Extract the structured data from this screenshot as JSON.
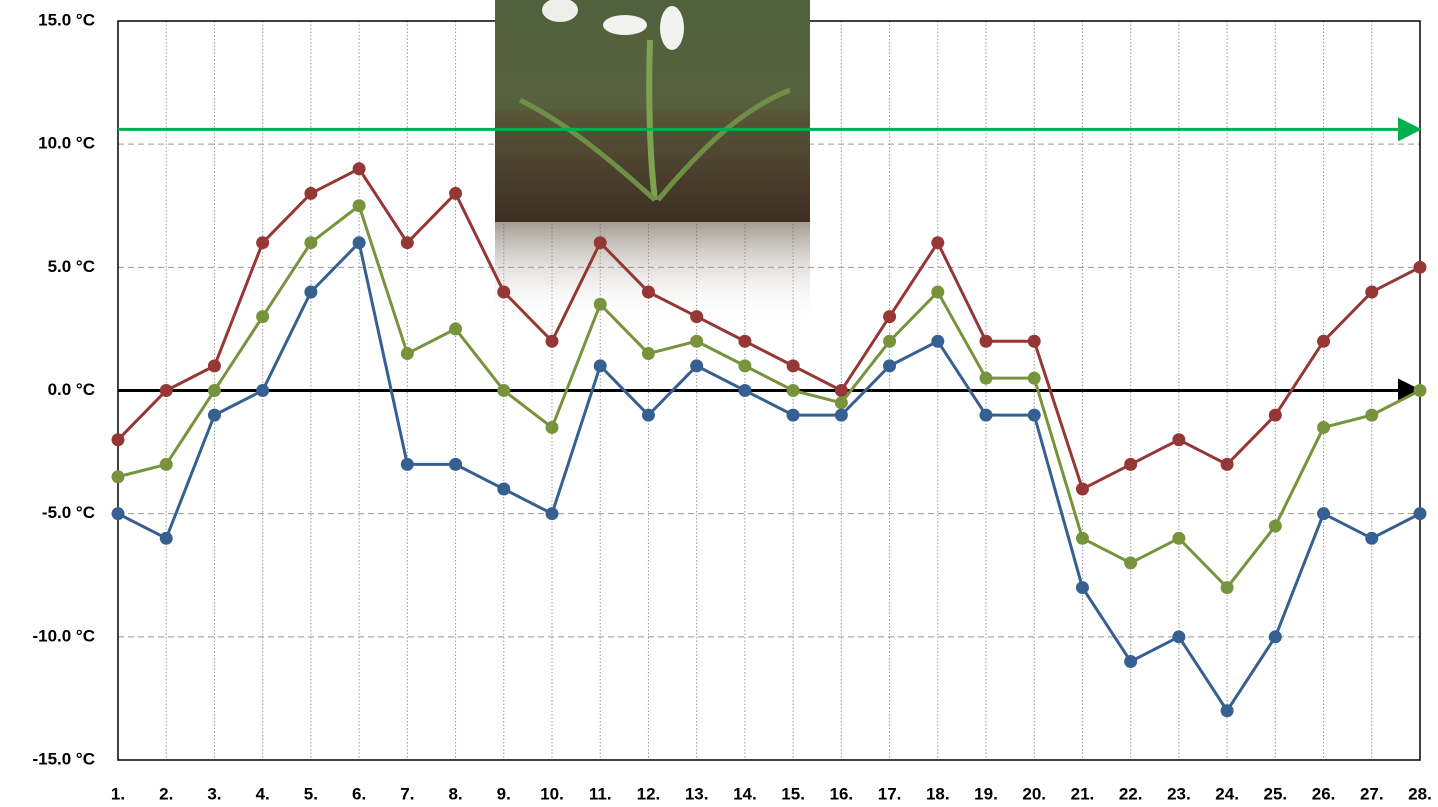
{
  "chart_data": {
    "type": "line",
    "categories": [
      "1.",
      "2.",
      "3.",
      "4.",
      "5.",
      "6.",
      "7.",
      "8.",
      "9.",
      "10.",
      "11.",
      "12.",
      "13.",
      "14.",
      "15.",
      "16.",
      "17.",
      "18.",
      "19.",
      "20.",
      "21.",
      "22.",
      "23.",
      "24.",
      "25.",
      "26.",
      "27.",
      "28."
    ],
    "series": [
      {
        "color": "#953735",
        "values": [
          -2,
          0,
          1,
          6,
          8,
          9,
          6,
          8,
          4,
          2,
          6,
          4,
          3,
          2,
          1,
          0,
          3,
          6,
          2,
          2,
          -4,
          -3,
          -2,
          -3,
          -1,
          2,
          4,
          5
        ]
      },
      {
        "color": "#77933c",
        "values": [
          -3.5,
          -3,
          0,
          3,
          6,
          7.5,
          1.5,
          2.5,
          0,
          -1.5,
          3.5,
          1.5,
          2,
          1,
          0,
          -0.5,
          2,
          4,
          0.5,
          0.5,
          -6,
          -7,
          -6,
          -8,
          -5.5,
          -1.5,
          -1,
          0
        ]
      },
      {
        "color": "#376092",
        "values": [
          -5,
          -6,
          -1,
          0,
          4,
          6,
          -3,
          -3,
          -4,
          -5,
          1,
          -1,
          1,
          0,
          -1,
          -1,
          1,
          2,
          -1,
          -1,
          -8,
          -11,
          -10,
          -13,
          -10,
          -5,
          -6,
          -5
        ]
      }
    ],
    "ylim": [
      -15,
      15
    ],
    "yticks": [
      {
        "value": -15,
        "label": "-15.0 °C"
      },
      {
        "value": -10,
        "label": "-10.0 °C"
      },
      {
        "value": -5,
        "label": "-5.0 °C"
      },
      {
        "value": 0,
        "label": "0.0 °C"
      },
      {
        "value": 5,
        "label": "5.0 °C"
      },
      {
        "value": 10,
        "label": "10.0 °C"
      },
      {
        "value": 15,
        "label": "15.0 °C"
      }
    ],
    "grid": true,
    "reference_lines": [
      {
        "value": 10.6,
        "color": "#00b050"
      },
      {
        "value": 0,
        "color": "#000000"
      }
    ]
  }
}
